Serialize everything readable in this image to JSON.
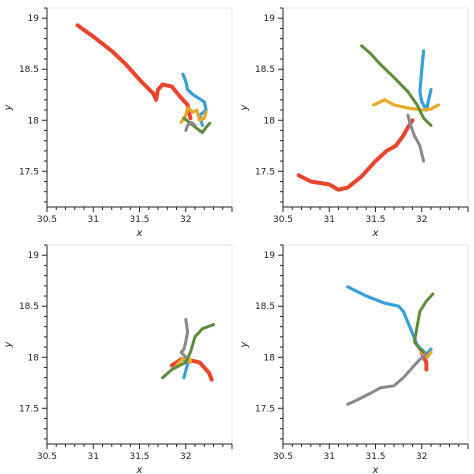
{
  "chart_data": {
    "type": "line",
    "xlabel": "x",
    "ylabel": "y",
    "xlim": [
      30.5,
      32.5
    ],
    "ylim": [
      17.15,
      19.1
    ],
    "x_ticks": [
      "30.5",
      "31",
      "31.5",
      "32"
    ],
    "x_tick_values": [
      30.5,
      31,
      31.5,
      32
    ],
    "y_ticks": [
      "17.5",
      "18",
      "18.5",
      "19"
    ],
    "y_tick_values": [
      17.5,
      18,
      18.5,
      19
    ],
    "grid": false,
    "legend": "none",
    "colors": [
      "#e8452c",
      "#3a9fd8",
      "#e8a92a",
      "#5d8c3a",
      "#888888"
    ],
    "panels": [
      {
        "series": [
          {
            "color": "#e8452c",
            "points": [
              [
                30.83,
                18.93
              ],
              [
                31.0,
                18.82
              ],
              [
                31.2,
                18.68
              ],
              [
                31.35,
                18.55
              ],
              [
                31.52,
                18.38
              ],
              [
                31.65,
                18.26
              ],
              [
                31.68,
                18.2
              ],
              [
                31.7,
                18.3
              ],
              [
                31.75,
                18.35
              ],
              [
                31.85,
                18.33
              ],
              [
                31.95,
                18.22
              ],
              [
                32.02,
                18.15
              ],
              [
                32.05,
                18.02
              ]
            ]
          },
          {
            "color": "#3a9fd8",
            "points": [
              [
                31.97,
                18.45
              ],
              [
                32.0,
                18.38
              ],
              [
                32.02,
                18.3
              ],
              [
                32.08,
                18.25
              ],
              [
                32.2,
                18.18
              ],
              [
                32.22,
                18.1
              ],
              [
                32.15,
                18.05
              ],
              [
                32.18,
                17.95
              ]
            ]
          },
          {
            "color": "#e8a92a",
            "points": [
              [
                31.95,
                17.98
              ],
              [
                32.0,
                18.05
              ],
              [
                32.02,
                18.12
              ],
              [
                32.08,
                18.08
              ],
              [
                32.12,
                18.1
              ],
              [
                32.15,
                18.0
              ],
              [
                32.2,
                18.02
              ],
              [
                32.22,
                18.08
              ]
            ]
          },
          {
            "color": "#5d8c3a",
            "points": [
              [
                31.98,
                18.02
              ],
              [
                32.05,
                17.97
              ],
              [
                32.12,
                17.92
              ],
              [
                32.18,
                17.88
              ],
              [
                32.22,
                17.93
              ],
              [
                32.26,
                17.97
              ]
            ]
          },
          {
            "color": "#888888",
            "points": [
              [
                32.0,
                17.9
              ],
              [
                32.02,
                17.95
              ],
              [
                32.06,
                17.98
              ],
              [
                32.1,
                17.95
              ]
            ]
          }
        ]
      },
      {
        "series": [
          {
            "color": "#e8452c",
            "points": [
              [
                30.67,
                17.46
              ],
              [
                30.8,
                17.4
              ],
              [
                31.0,
                17.37
              ],
              [
                31.1,
                17.32
              ],
              [
                31.2,
                17.34
              ],
              [
                31.35,
                17.45
              ],
              [
                31.5,
                17.6
              ],
              [
                31.62,
                17.7
              ],
              [
                31.72,
                17.75
              ],
              [
                31.8,
                17.85
              ],
              [
                31.85,
                17.93
              ],
              [
                31.9,
                18.0
              ]
            ]
          },
          {
            "color": "#3a9fd8",
            "points": [
              [
                32.02,
                18.68
              ],
              [
                32.0,
                18.5
              ],
              [
                31.98,
                18.28
              ],
              [
                32.0,
                18.18
              ],
              [
                32.05,
                18.1
              ],
              [
                32.08,
                18.22
              ],
              [
                32.1,
                18.3
              ]
            ]
          },
          {
            "color": "#e8a92a",
            "points": [
              [
                31.48,
                18.15
              ],
              [
                31.6,
                18.2
              ],
              [
                31.7,
                18.15
              ],
              [
                31.85,
                18.12
              ],
              [
                32.0,
                18.1
              ],
              [
                32.1,
                18.11
              ],
              [
                32.18,
                18.15
              ]
            ]
          },
          {
            "color": "#5d8c3a",
            "points": [
              [
                31.35,
                18.73
              ],
              [
                31.45,
                18.65
              ],
              [
                31.55,
                18.55
              ],
              [
                31.7,
                18.42
              ],
              [
                31.85,
                18.28
              ],
              [
                31.95,
                18.15
              ],
              [
                32.02,
                18.02
              ],
              [
                32.1,
                17.95
              ]
            ]
          },
          {
            "color": "#888888",
            "points": [
              [
                31.85,
                18.05
              ],
              [
                31.88,
                17.95
              ],
              [
                31.92,
                17.85
              ],
              [
                31.98,
                17.75
              ],
              [
                32.02,
                17.6
              ]
            ]
          }
        ]
      },
      {
        "series": [
          {
            "color": "#e8452c",
            "points": [
              [
                31.85,
                17.92
              ],
              [
                31.95,
                17.98
              ],
              [
                32.05,
                17.97
              ],
              [
                32.15,
                17.95
              ],
              [
                32.25,
                17.85
              ],
              [
                32.28,
                17.78
              ]
            ]
          },
          {
            "color": "#3a9fd8",
            "points": [
              [
                31.98,
                17.8
              ],
              [
                32.0,
                17.87
              ],
              [
                32.02,
                17.93
              ],
              [
                31.98,
                17.98
              ]
            ]
          },
          {
            "color": "#e8a92a",
            "points": [
              [
                31.9,
                17.92
              ],
              [
                31.95,
                17.97
              ],
              [
                32.0,
                18.0
              ],
              [
                32.05,
                17.95
              ],
              [
                32.05,
                17.98
              ]
            ]
          },
          {
            "color": "#5d8c3a",
            "points": [
              [
                31.75,
                17.8
              ],
              [
                31.85,
                17.88
              ],
              [
                32.0,
                17.95
              ],
              [
                32.05,
                18.05
              ],
              [
                32.1,
                18.2
              ],
              [
                32.18,
                18.28
              ],
              [
                32.3,
                18.32
              ]
            ]
          },
          {
            "color": "#888888",
            "points": [
              [
                32.0,
                18.37
              ],
              [
                32.02,
                18.25
              ],
              [
                32.0,
                18.15
              ],
              [
                31.98,
                18.08
              ],
              [
                31.95,
                18.05
              ],
              [
                32.0,
                18.0
              ]
            ]
          }
        ]
      },
      {
        "series": [
          {
            "color": "#e8452c",
            "points": [
              [
                32.0,
                18.05
              ],
              [
                32.02,
                18.0
              ],
              [
                32.05,
                17.95
              ],
              [
                32.05,
                17.88
              ]
            ]
          },
          {
            "color": "#3a9fd8",
            "points": [
              [
                31.2,
                18.69
              ],
              [
                31.4,
                18.6
              ],
              [
                31.6,
                18.53
              ],
              [
                31.75,
                18.5
              ],
              [
                31.8,
                18.45
              ],
              [
                31.88,
                18.28
              ],
              [
                31.95,
                18.12
              ],
              [
                32.05,
                18.03
              ],
              [
                32.1,
                18.08
              ]
            ]
          },
          {
            "color": "#e8a92a",
            "points": [
              [
                31.98,
                18.08
              ],
              [
                32.02,
                18.03
              ],
              [
                32.06,
                18.0
              ],
              [
                32.1,
                18.05
              ]
            ]
          },
          {
            "color": "#5d8c3a",
            "points": [
              [
                32.12,
                18.62
              ],
              [
                32.05,
                18.55
              ],
              [
                31.98,
                18.45
              ],
              [
                31.95,
                18.3
              ],
              [
                31.92,
                18.15
              ],
              [
                31.98,
                18.08
              ],
              [
                32.02,
                18.05
              ]
            ]
          },
          {
            "color": "#888888",
            "points": [
              [
                31.2,
                17.54
              ],
              [
                31.3,
                17.58
              ],
              [
                31.45,
                17.65
              ],
              [
                31.55,
                17.7
              ],
              [
                31.7,
                17.72
              ],
              [
                31.8,
                17.8
              ],
              [
                31.9,
                17.9
              ],
              [
                31.98,
                17.98
              ],
              [
                32.05,
                18.03
              ]
            ]
          }
        ]
      }
    ]
  }
}
